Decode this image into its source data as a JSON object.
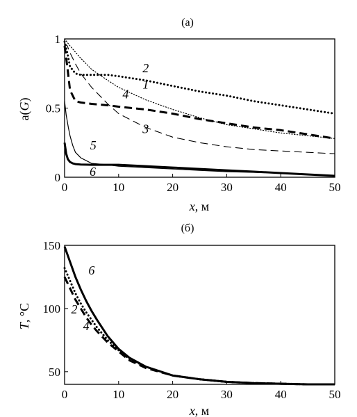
{
  "chart_data": [
    {
      "type": "line",
      "title": "(а)",
      "xlabel_var": "x",
      "xlabel_unit": ", м",
      "ylabel_func": "a(",
      "ylabel_var": "G",
      "ylabel_close": ")",
      "xlim": [
        0,
        50
      ],
      "ylim": [
        0,
        1
      ],
      "xticks": [
        "0",
        "10",
        "20",
        "30",
        "40",
        "50"
      ],
      "yticks": [
        "0",
        "0.5",
        "1"
      ],
      "grid": false,
      "series": [
        {
          "name": "1",
          "style": "dotted-thin",
          "x": [
            0,
            1,
            3,
            5,
            8,
            10,
            15,
            20,
            25,
            30,
            35,
            40,
            45,
            50
          ],
          "y": [
            1.0,
            0.95,
            0.86,
            0.78,
            0.7,
            0.65,
            0.56,
            0.49,
            0.43,
            0.38,
            0.35,
            0.32,
            0.3,
            0.28
          ]
        },
        {
          "name": "2",
          "style": "dotted-thick",
          "x": [
            0,
            0.5,
            1,
            2,
            3,
            5,
            8,
            10,
            15,
            20,
            25,
            30,
            35,
            40,
            45,
            50
          ],
          "y": [
            0.98,
            0.9,
            0.8,
            0.75,
            0.74,
            0.74,
            0.74,
            0.73,
            0.7,
            0.66,
            0.62,
            0.59,
            0.55,
            0.52,
            0.49,
            0.46
          ]
        },
        {
          "name": "3",
          "style": "dashed-thin",
          "x": [
            0,
            0.5,
            1,
            2,
            3,
            5,
            8,
            10,
            15,
            20,
            25,
            30,
            35,
            40,
            45,
            50
          ],
          "y": [
            0.97,
            0.95,
            0.9,
            0.82,
            0.75,
            0.65,
            0.53,
            0.46,
            0.36,
            0.29,
            0.25,
            0.22,
            0.2,
            0.19,
            0.18,
            0.17
          ]
        },
        {
          "name": "4",
          "style": "dashed-thick",
          "x": [
            0,
            0.5,
            1,
            2,
            3,
            5,
            8,
            10,
            15,
            20,
            25,
            30,
            35,
            40,
            45,
            50
          ],
          "y": [
            0.95,
            0.8,
            0.63,
            0.55,
            0.54,
            0.53,
            0.52,
            0.51,
            0.49,
            0.46,
            0.42,
            0.39,
            0.36,
            0.34,
            0.31,
            0.28
          ]
        },
        {
          "name": "5",
          "style": "solid-thin",
          "x": [
            0,
            0.3,
            0.7,
            1,
            1.5,
            2,
            3,
            5,
            8,
            10,
            15,
            20,
            25,
            30,
            35,
            40,
            45,
            50
          ],
          "y": [
            0.55,
            0.45,
            0.36,
            0.3,
            0.23,
            0.18,
            0.14,
            0.1,
            0.09,
            0.08,
            0.07,
            0.06,
            0.05,
            0.04,
            0.035,
            0.03,
            0.02,
            0.01
          ]
        },
        {
          "name": "6",
          "style": "solid-thick",
          "x": [
            0,
            0.3,
            0.6,
            1,
            1.5,
            2,
            3,
            5,
            8,
            10,
            15,
            20,
            25,
            30,
            35,
            40,
            45,
            50
          ],
          "y": [
            0.25,
            0.17,
            0.13,
            0.11,
            0.1,
            0.095,
            0.092,
            0.09,
            0.09,
            0.09,
            0.08,
            0.07,
            0.06,
            0.05,
            0.04,
            0.03,
            0.02,
            0.01
          ]
        }
      ],
      "curve_labels": [
        {
          "text": "1",
          "x": 15,
          "y": 0.64
        },
        {
          "text": "2",
          "x": 15,
          "y": 0.76
        },
        {
          "text": "3",
          "x": 15,
          "y": 0.32
        },
        {
          "text": "4",
          "x": 11.3,
          "y": 0.57
        },
        {
          "text": "5",
          "x": 5.3,
          "y": 0.2
        },
        {
          "text": "6",
          "x": 5.2,
          "y": 0.01
        }
      ]
    },
    {
      "type": "line",
      "title": "(б)",
      "xlabel_var": "x",
      "xlabel_unit": ", м",
      "ylabel_var": "T",
      "ylabel_unit": ", °C",
      "xlim": [
        0,
        50
      ],
      "ylim": [
        40,
        150
      ],
      "xticks": [
        "0",
        "10",
        "20",
        "30",
        "40",
        "50"
      ],
      "yticks": [
        "50",
        "100",
        "150"
      ],
      "grid": false,
      "series": [
        {
          "name": "6",
          "style": "solid-thick",
          "x": [
            0,
            1,
            2,
            3,
            4,
            5,
            6,
            8,
            10,
            12,
            15,
            20,
            25,
            30,
            35,
            40,
            45,
            50
          ],
          "y": [
            149,
            137,
            125,
            115,
            106,
            98,
            91,
            78,
            68,
            61,
            54,
            47,
            44,
            42,
            41,
            40.5,
            40,
            40
          ]
        },
        {
          "name": "2",
          "style": "dotted-thick",
          "x": [
            0,
            1,
            2,
            3,
            4,
            5,
            6,
            8,
            10,
            12,
            15,
            20,
            25,
            30,
            35,
            40,
            45,
            50
          ],
          "y": [
            132,
            122,
            112,
            104,
            97,
            91,
            85,
            75,
            67,
            60,
            54,
            47,
            44,
            42,
            41,
            40.5,
            40,
            40
          ]
        },
        {
          "name": "4",
          "style": "dashed-thick",
          "x": [
            0,
            1,
            2,
            3,
            4,
            5,
            6,
            8,
            10,
            12,
            15,
            20,
            25,
            30,
            35,
            40,
            45,
            50
          ],
          "y": [
            125,
            116,
            107,
            100,
            93,
            87,
            82,
            73,
            66,
            59,
            53,
            47,
            44,
            42,
            41,
            40.5,
            40,
            40
          ]
        }
      ],
      "curve_labels": [
        {
          "text": "6",
          "x": 5,
          "y": 127
        },
        {
          "text": "2",
          "x": 1.8,
          "y": 96
        },
        {
          "text": "4",
          "x": 4,
          "y": 83
        }
      ]
    }
  ]
}
